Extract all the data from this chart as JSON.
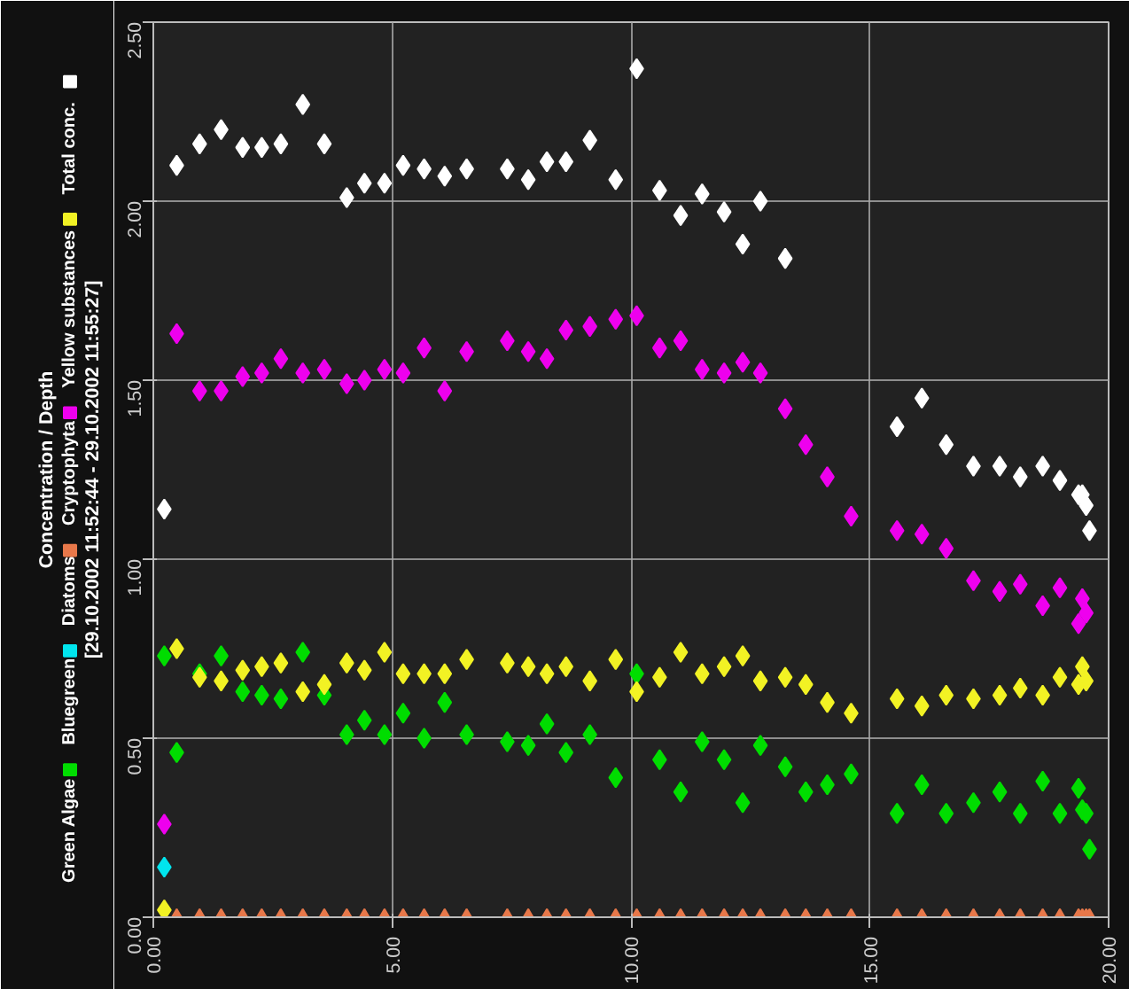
{
  "chart_data": {
    "type": "scatter",
    "legend_title": "Concentration / Depth",
    "subtitle": "[29.10.2002 11:52:44 - 29.10.2002 11:55:27]",
    "x": [
      0.23,
      0.49,
      0.97,
      1.42,
      1.87,
      2.27,
      2.67,
      3.13,
      3.58,
      4.05,
      4.42,
      4.84,
      5.23,
      5.67,
      6.1,
      6.56,
      7.41,
      7.85,
      8.24,
      8.64,
      9.14,
      9.68,
      10.12,
      10.6,
      11.04,
      11.49,
      11.95,
      12.34,
      12.71,
      13.23,
      13.66,
      14.11,
      14.61,
      15.57,
      16.09,
      16.6,
      17.17,
      17.72,
      18.15,
      18.62,
      18.98,
      19.37,
      19.45,
      19.53,
      19.6
    ],
    "series": [
      {
        "name": "Green Algae",
        "color": "#00dd00",
        "marker": "diamond",
        "values": [
          0.73,
          0.46,
          0.68,
          0.73,
          0.63,
          0.62,
          0.61,
          0.74,
          0.62,
          0.51,
          0.55,
          0.51,
          0.57,
          0.5,
          0.6,
          0.51,
          0.49,
          0.48,
          0.54,
          0.46,
          0.51,
          0.39,
          0.68,
          0.44,
          0.35,
          0.49,
          0.44,
          0.32,
          0.48,
          0.42,
          0.35,
          0.37,
          0.4,
          0.29,
          0.37,
          0.29,
          0.32,
          0.35,
          0.29,
          0.38,
          0.29,
          0.36,
          0.3,
          0.29,
          0.19
        ]
      },
      {
        "name": "Bluegreen",
        "color": "#00e5ee",
        "marker": "diamond",
        "values": [
          0.14,
          null,
          null,
          null,
          null,
          null,
          null,
          null,
          null,
          null,
          null,
          null,
          null,
          null,
          null,
          null,
          null,
          null,
          null,
          null,
          null,
          null,
          null,
          null,
          null,
          null,
          null,
          null,
          null,
          null,
          null,
          null,
          null,
          null,
          null,
          null,
          null,
          null,
          null,
          null,
          null,
          null,
          null,
          null,
          null
        ]
      },
      {
        "name": "Diatoms",
        "color": "#e8784a",
        "marker": "triangle",
        "values": [
          null,
          0,
          0,
          0,
          0,
          0,
          0,
          0,
          0,
          0,
          0,
          0,
          0,
          0,
          0,
          0,
          0,
          0,
          0,
          0,
          0,
          0,
          0,
          0,
          0,
          0,
          0,
          0,
          0,
          0,
          0,
          0,
          0,
          0,
          0,
          0,
          0,
          0,
          0,
          0,
          0,
          0,
          0,
          0,
          0
        ]
      },
      {
        "name": "Cryptophyta",
        "color": "#ee00ee",
        "marker": "diamond",
        "values": [
          0.26,
          1.63,
          1.47,
          1.47,
          1.51,
          1.52,
          1.56,
          1.52,
          1.53,
          1.49,
          1.5,
          1.53,
          1.52,
          1.59,
          1.47,
          1.58,
          1.61,
          1.58,
          1.56,
          1.64,
          1.65,
          1.67,
          1.68,
          1.59,
          1.61,
          1.53,
          1.52,
          1.55,
          1.52,
          1.42,
          1.32,
          1.23,
          1.12,
          1.08,
          1.07,
          1.03,
          0.94,
          0.91,
          0.93,
          0.87,
          0.92,
          0.82,
          0.89,
          0.85,
          null
        ]
      },
      {
        "name": "Yellow substances",
        "color": "#f2f224",
        "marker": "diamond",
        "values": [
          0.02,
          0.75,
          0.67,
          0.66,
          0.69,
          0.7,
          0.71,
          0.63,
          0.65,
          0.71,
          0.69,
          0.74,
          0.68,
          0.68,
          0.68,
          0.72,
          0.71,
          0.7,
          0.68,
          0.7,
          0.66,
          0.72,
          0.63,
          0.67,
          0.74,
          0.68,
          0.7,
          0.73,
          0.66,
          0.67,
          0.65,
          0.6,
          0.57,
          0.61,
          0.59,
          0.62,
          0.61,
          0.62,
          0.64,
          0.62,
          0.67,
          0.65,
          0.7,
          0.66,
          null
        ]
      },
      {
        "name": "Total conc.",
        "color": "#ffffff",
        "marker": "diamond",
        "values": [
          1.14,
          2.1,
          2.16,
          2.2,
          2.15,
          2.15,
          2.16,
          2.27,
          2.16,
          2.01,
          2.05,
          2.05,
          2.1,
          2.09,
          2.07,
          2.09,
          2.09,
          2.06,
          2.11,
          2.11,
          2.17,
          2.06,
          2.37,
          2.03,
          1.96,
          2.02,
          1.97,
          1.88,
          2.0,
          1.84,
          null,
          null,
          null,
          1.37,
          1.45,
          1.32,
          1.26,
          1.26,
          1.23,
          1.26,
          1.22,
          1.18,
          1.18,
          1.15,
          1.08
        ]
      }
    ],
    "xlim": [
      0,
      20
    ],
    "xticks": [
      {
        "value": 0,
        "label": "0.00"
      },
      {
        "value": 5,
        "label": "5.00"
      },
      {
        "value": 10,
        "label": "10.00"
      },
      {
        "value": 15,
        "label": "15.00"
      },
      {
        "value": 20,
        "label": "20.00"
      }
    ],
    "ylim": [
      0,
      2.5
    ],
    "yticks": [
      {
        "value": 0,
        "label": "0.00"
      },
      {
        "value": 0.5,
        "label": "0.50"
      },
      {
        "value": 1,
        "label": "1.00"
      },
      {
        "value": 1.5,
        "label": "1.50"
      },
      {
        "value": 2,
        "label": "2.00"
      },
      {
        "value": 2.5,
        "label": "2.50"
      }
    ],
    "grid": true,
    "legend": "left"
  }
}
